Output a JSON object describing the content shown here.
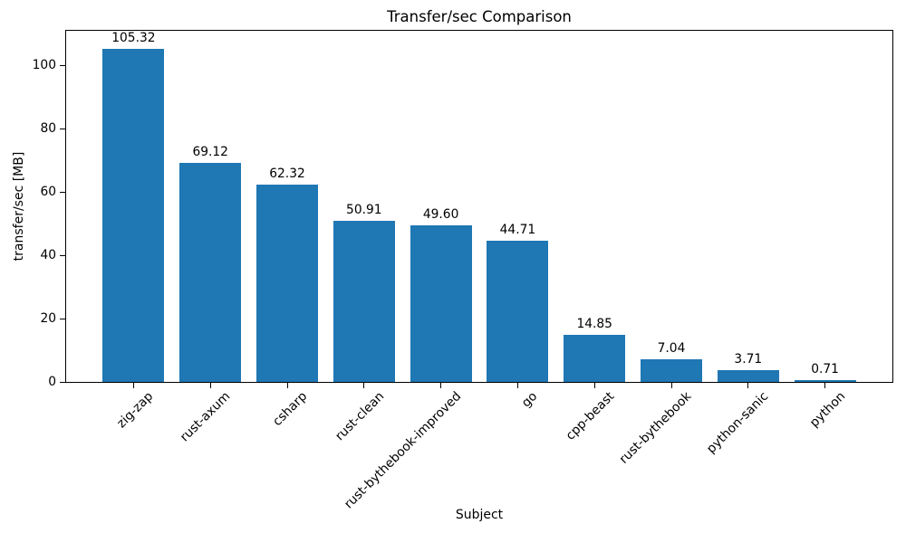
{
  "chart_data": {
    "type": "bar",
    "title": "Transfer/sec Comparison",
    "xlabel": "Subject",
    "ylabel": "transfer/sec [MB]",
    "categories": [
      "zig-zap",
      "rust-axum",
      "csharp",
      "rust-clean",
      "rust-bythebook-improved",
      "go",
      "cpp-beast",
      "rust-bythebook",
      "python-sanic",
      "python"
    ],
    "values": [
      105.32,
      69.12,
      62.32,
      50.91,
      49.6,
      44.71,
      14.85,
      7.04,
      3.71,
      0.71
    ],
    "value_labels": [
      "105.32",
      "69.12",
      "62.32",
      "50.91",
      "49.60",
      "44.71",
      "14.85",
      "7.04",
      "3.71",
      "0.71"
    ],
    "yticks": [
      0,
      20,
      40,
      60,
      80,
      100
    ],
    "ylim": [
      0,
      111
    ],
    "bar_color": "#1f77b4",
    "axis_color": "#000000",
    "background_color": "#ffffff",
    "grid": false,
    "legend": null,
    "x_tick_rotation_deg": 45
  }
}
